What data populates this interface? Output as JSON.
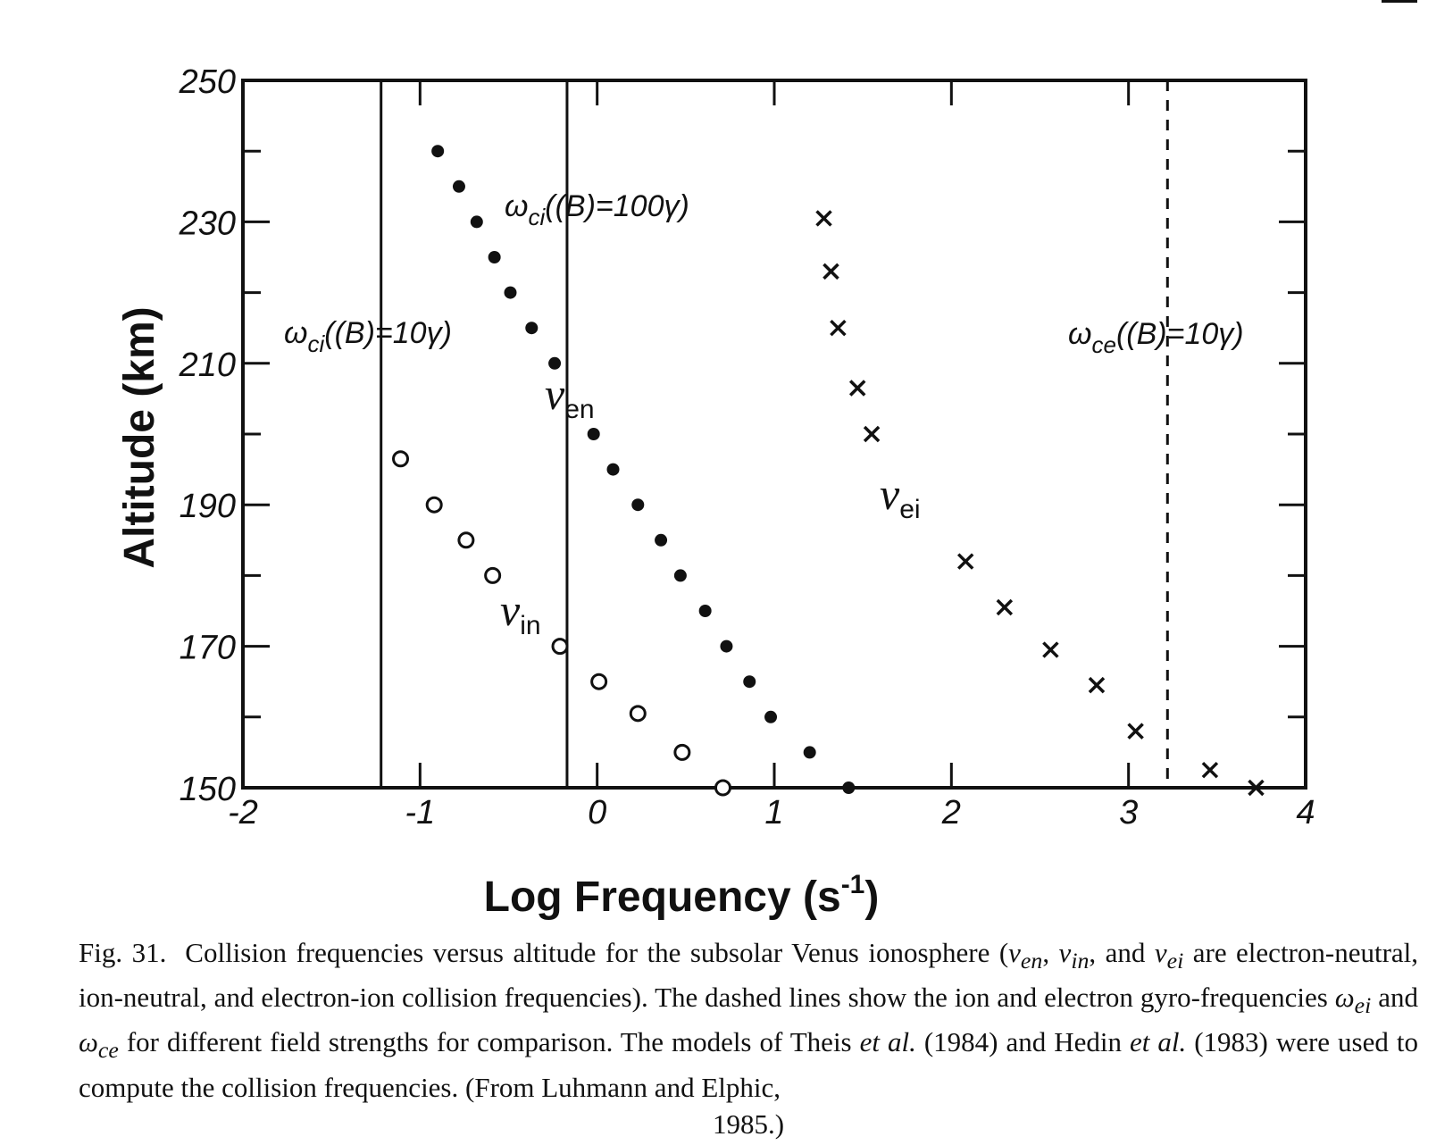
{
  "chart_data": {
    "type": "scatter",
    "title": "",
    "xlabel": "Log Frequency (s",
    "xlabel_sup": "-1",
    "xlabel_end": ")",
    "ylabel": "Altitude (km)",
    "xlim": [
      -2,
      4
    ],
    "ylim": [
      150,
      250
    ],
    "x_ticks": [
      -2,
      -1,
      0,
      1,
      2,
      3,
      4
    ],
    "x_tick_labels": [
      "-2",
      "-1",
      "0",
      "1",
      "2",
      "3",
      "4"
    ],
    "y_ticks": [
      150,
      170,
      190,
      210,
      230,
      250
    ],
    "y_tick_labels": [
      "150",
      "170",
      "190",
      "210",
      "230",
      "250"
    ],
    "grid": false,
    "series": [
      {
        "label": "ν",
        "sub": "en",
        "marker": "filled-circle",
        "points": [
          [
            -0.9,
            240
          ],
          [
            -0.78,
            235
          ],
          [
            -0.68,
            230
          ],
          [
            -0.58,
            225
          ],
          [
            -0.49,
            220
          ],
          [
            -0.37,
            215
          ],
          [
            -0.24,
            210
          ],
          [
            -0.02,
            200
          ],
          [
            0.09,
            195
          ],
          [
            0.23,
            190
          ],
          [
            0.36,
            185
          ],
          [
            0.47,
            180
          ],
          [
            0.61,
            175
          ],
          [
            0.73,
            170
          ],
          [
            0.86,
            165
          ],
          [
            0.98,
            160
          ],
          [
            1.2,
            155
          ],
          [
            1.42,
            150
          ]
        ]
      },
      {
        "label": "ν",
        "sub": "in",
        "marker": "open-circle",
        "points": [
          [
            -1.11,
            196.5
          ],
          [
            -0.92,
            190
          ],
          [
            -0.74,
            185
          ],
          [
            -0.59,
            180
          ],
          [
            -0.21,
            170
          ],
          [
            0.01,
            165
          ],
          [
            0.23,
            160.5
          ],
          [
            0.48,
            155
          ],
          [
            0.71,
            150
          ]
        ]
      },
      {
        "label": "ν",
        "sub": "ei",
        "marker": "cross",
        "points": [
          [
            1.28,
            230.5
          ],
          [
            1.32,
            223
          ],
          [
            1.36,
            215
          ],
          [
            1.47,
            206.5
          ],
          [
            1.55,
            200
          ],
          [
            2.08,
            182
          ],
          [
            2.3,
            175.5
          ],
          [
            2.56,
            169.5
          ],
          [
            2.82,
            164.5
          ],
          [
            3.04,
            158
          ],
          [
            3.46,
            152.5
          ],
          [
            3.72,
            150
          ]
        ]
      }
    ],
    "reference_lines": [
      {
        "label": "ω",
        "sub": "ci",
        "text": "((B)=10γ)",
        "x": -1.22,
        "style": "solid"
      },
      {
        "label": "ω",
        "sub": "ci",
        "text": "((B)=100γ)",
        "x": -0.17,
        "style": "solid"
      },
      {
        "label": "ω",
        "sub": "ce",
        "text": "((B)=10γ)",
        "x": 3.22,
        "style": "dashed"
      }
    ]
  },
  "caption": {
    "label": "Fig. 31.",
    "t1": "Collision frequencies versus altitude for the subsolar Venus ionosphere (",
    "v_en": "ν",
    "s_en": "en",
    "comma1": ", ",
    "v_in": "ν",
    "s_in": "in",
    "and1": ", and ",
    "v_ei": "ν",
    "s_ei": "ei",
    "t2": " are electron-neutral, ion-neutral, and electron-ion collision frequencies). The dashed lines show the ion and electron gyro-frequencies ",
    "w_ei": "ω",
    "sw_ei": "ei",
    "and2": " and ",
    "w_ce": "ω",
    "sw_ce": "ce",
    "t3": " for different field strengths for comparison. The models of Theis ",
    "etal1": "et al.",
    "t4": " (1984) and Hedin ",
    "etal2": "et al.",
    "t5": " (1983) were used to compute the collision frequencies. (From Luhmann and Elphic,",
    "t6": "1985.)"
  }
}
